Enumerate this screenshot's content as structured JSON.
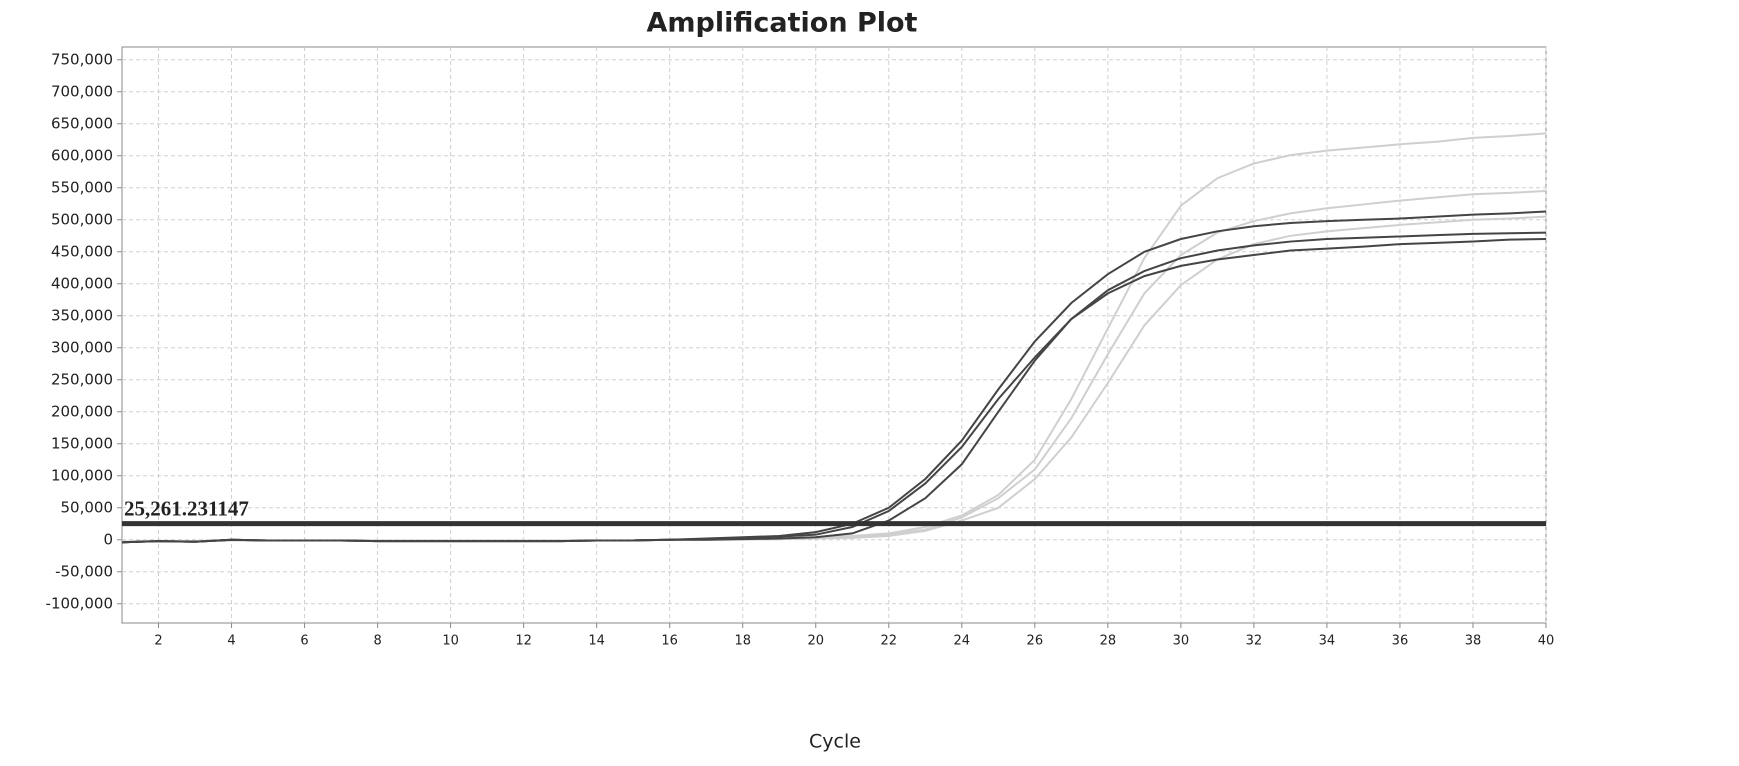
{
  "chart_data": {
    "type": "line",
    "title": "Amplification Plot",
    "xlabel": "Cycle",
    "x": [
      1,
      2,
      3,
      4,
      5,
      6,
      7,
      8,
      9,
      10,
      11,
      12,
      13,
      14,
      15,
      16,
      17,
      18,
      19,
      20,
      21,
      22,
      23,
      24,
      25,
      26,
      27,
      28,
      29,
      30,
      31,
      32,
      33,
      34,
      35,
      36,
      37,
      38,
      39,
      40
    ],
    "series": [
      {
        "color": "#cfcfcf",
        "values": [
          -3000,
          -2000,
          -2000,
          -1000,
          -1000,
          -1000,
          -1000,
          -1000,
          -1000,
          -1000,
          -1000,
          -1000,
          -1000,
          -1000,
          -1000,
          0,
          0,
          1000,
          2000,
          4000,
          6000,
          10000,
          20000,
          38000,
          70000,
          125000,
          220000,
          330000,
          440000,
          522000,
          565000,
          588000,
          601000,
          608000,
          613000,
          618000,
          622000,
          628000,
          631000,
          635000
        ]
      },
      {
        "color": "#cfcfcf",
        "values": [
          -3000,
          -2000,
          -2000,
          -1000,
          -1000,
          -1000,
          -1000,
          -1000,
          -1000,
          -1000,
          -1000,
          -1000,
          -1000,
          -1000,
          -1000,
          0,
          0,
          500,
          1000,
          2000,
          4000,
          8000,
          16000,
          35000,
          65000,
          110000,
          190000,
          290000,
          385000,
          445000,
          480000,
          498000,
          510000,
          518000,
          524000,
          530000,
          535000,
          540000,
          542000,
          545000
        ]
      },
      {
        "color": "#cfcfcf",
        "values": [
          -3000,
          -2000,
          -2000,
          -1000,
          -1000,
          -1000,
          -1000,
          -1000,
          -1000,
          -1000,
          -1000,
          -1000,
          -1000,
          -1000,
          -1000,
          0,
          0,
          500,
          1000,
          2000,
          3000,
          6000,
          14000,
          30000,
          50000,
          95000,
          160000,
          245000,
          335000,
          398000,
          438000,
          462000,
          475000,
          482000,
          487000,
          492000,
          496000,
          500000,
          502000,
          505000
        ]
      },
      {
        "color": "#454545",
        "values": [
          -4000,
          -2000,
          -3000,
          0,
          -1000,
          -1000,
          -1000,
          -2000,
          -2000,
          -2000,
          -2000,
          -2000,
          -2000,
          -1000,
          -1000,
          0,
          2000,
          4000,
          6000,
          12000,
          25000,
          50000,
          95000,
          155000,
          235000,
          310000,
          370000,
          415000,
          450000,
          470000,
          482000,
          490000,
          495000,
          498000,
          500000,
          502000,
          505000,
          508000,
          510000,
          513000
        ]
      },
      {
        "color": "#454545",
        "values": [
          -4000,
          -2000,
          -3000,
          0,
          -1000,
          -1000,
          -1000,
          -2000,
          -2000,
          -2000,
          -2000,
          -2000,
          -2000,
          -1000,
          -1000,
          0,
          1000,
          3000,
          5000,
          8000,
          20000,
          45000,
          88000,
          145000,
          220000,
          285000,
          345000,
          390000,
          420000,
          440000,
          452000,
          460000,
          466000,
          470000,
          472000,
          474000,
          476000,
          478000,
          479000,
          480000
        ]
      },
      {
        "color": "#454545",
        "values": [
          -4000,
          -2000,
          -3000,
          0,
          -1000,
          -1000,
          -1000,
          -2000,
          -2000,
          -2000,
          -2000,
          -2000,
          -2000,
          -1000,
          -1000,
          0,
          0,
          1000,
          2000,
          4000,
          10000,
          30000,
          65000,
          118000,
          200000,
          280000,
          345000,
          385000,
          412000,
          428000,
          438000,
          445000,
          452000,
          455000,
          458000,
          462000,
          464000,
          466000,
          469000,
          470000
        ]
      }
    ],
    "threshold": {
      "value": 25261.231147,
      "label": "25,261.231147",
      "color": "#333333"
    },
    "xlim": [
      1,
      40
    ],
    "xticks": [
      2,
      4,
      6,
      8,
      10,
      12,
      14,
      16,
      18,
      20,
      22,
      24,
      26,
      28,
      30,
      32,
      34,
      36,
      38,
      40
    ],
    "ylim": [
      -130000,
      770000
    ],
    "yticks": [
      {
        "value": -100000,
        "label": "-100,000"
      },
      {
        "value": -50000,
        "label": "-50,000"
      },
      0,
      {
        "value": 50000,
        "label": "50,000"
      },
      {
        "value": 100000,
        "label": "100,000"
      },
      {
        "value": 150000,
        "label": "150,000"
      },
      {
        "value": 200000,
        "label": "200,000"
      },
      {
        "value": 250000,
        "label": "250,000"
      },
      {
        "value": 300000,
        "label": "300,000"
      },
      {
        "value": 350000,
        "label": "350,000"
      },
      {
        "value": 400000,
        "label": "400,000"
      },
      {
        "value": 450000,
        "label": "450,000"
      },
      {
        "value": 500000,
        "label": "500,000"
      },
      {
        "value": 550000,
        "label": "550,000"
      },
      {
        "value": 600000,
        "label": "600,000"
      },
      {
        "value": 650000,
        "label": "650,000"
      },
      {
        "value": 700000,
        "label": "700,000"
      },
      {
        "value": 750000,
        "label": "750,000"
      }
    ],
    "grid": true
  }
}
